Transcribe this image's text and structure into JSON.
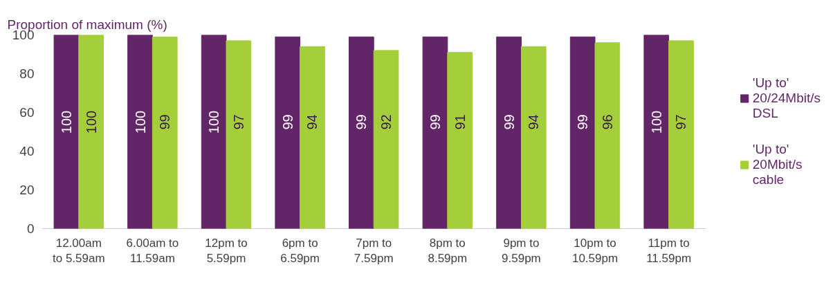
{
  "chart_data": {
    "type": "bar",
    "ylabel": "Proportion of maximum (%)",
    "categories": [
      "12.00am\nto 5.59am",
      "6.00am to\n11.59am",
      "12pm to\n5.59pm",
      "6pm to\n6.59pm",
      "7pm to\n7.59pm",
      "8pm to\n8.59pm",
      "9pm to\n9.59pm",
      "10pm to\n10.59pm",
      "11pm to\n11.59pm"
    ],
    "series": [
      {
        "name": "'Up to' 20/24Mbit/s DSL",
        "color": "#622567",
        "values": [
          100,
          100,
          100,
          99,
          99,
          99,
          99,
          99,
          100
        ]
      },
      {
        "name": "'Up to' 20Mbit/s cable",
        "color": "#a5cf3a",
        "values": [
          100,
          99,
          97,
          94,
          92,
          91,
          94,
          96,
          97
        ]
      }
    ],
    "ylim": [
      0,
      100
    ],
    "yticks": [
      0,
      20,
      40,
      60,
      80,
      100
    ],
    "data_labels": true,
    "legend": "right",
    "grid": false
  }
}
